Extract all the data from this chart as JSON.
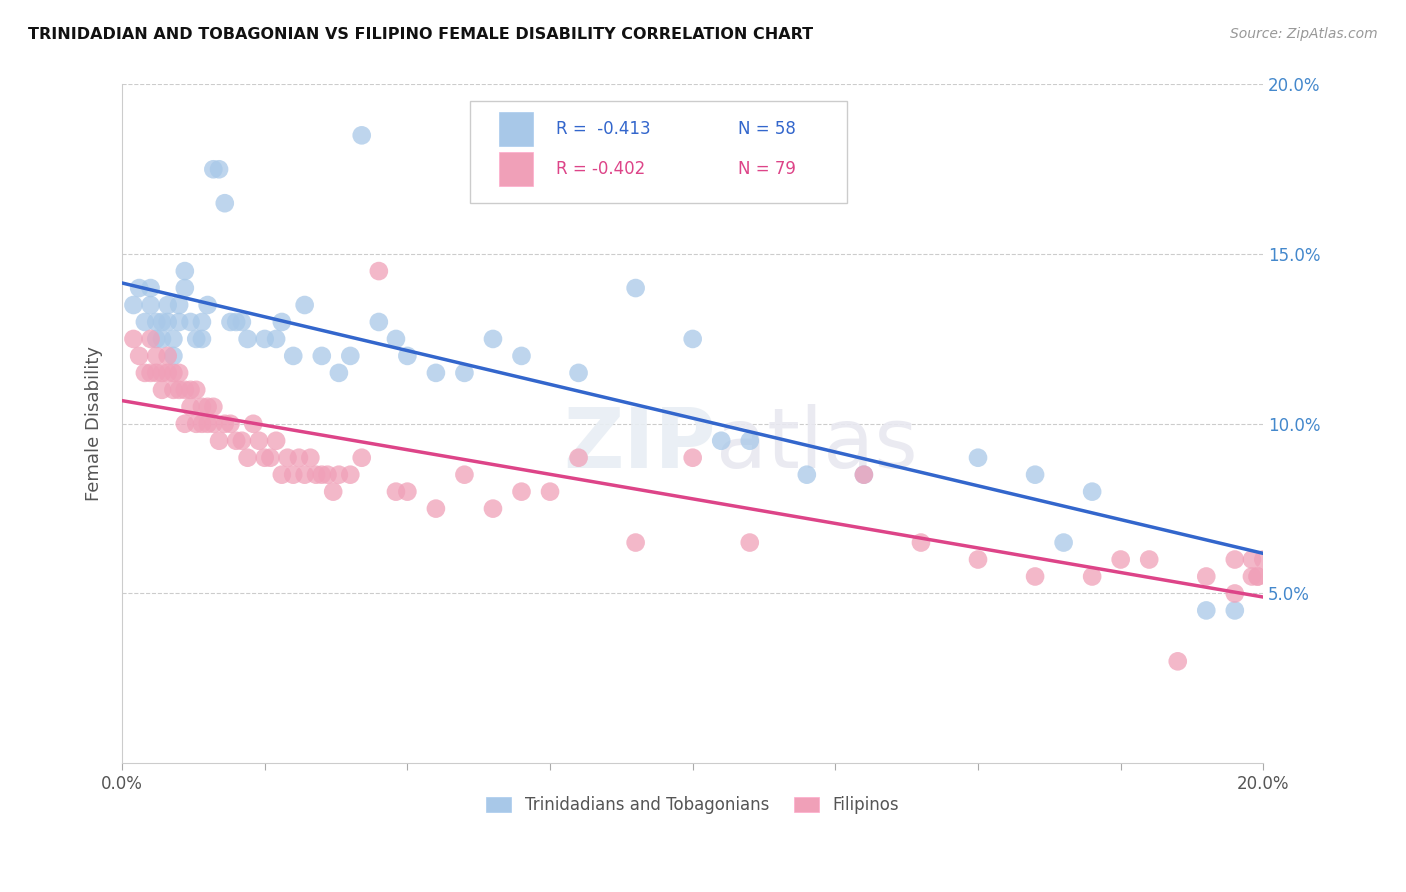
{
  "title": "TRINIDADIAN AND TOBAGONIAN VS FILIPINO FEMALE DISABILITY CORRELATION CHART",
  "source": "Source: ZipAtlas.com",
  "ylabel": "Female Disability",
  "xlim": [
    0.0,
    0.2
  ],
  "ylim": [
    0.0,
    0.2
  ],
  "ytick_positions": [
    0.05,
    0.1,
    0.15,
    0.2
  ],
  "ytick_labels": [
    "5.0%",
    "10.0%",
    "15.0%",
    "20.0%"
  ],
  "xtick_positions": [
    0.0,
    0.025,
    0.05,
    0.075,
    0.1,
    0.125,
    0.15,
    0.175,
    0.2
  ],
  "xtick_labels": [
    "0.0%",
    "",
    "",
    "",
    "",
    "",
    "",
    "",
    "20.0%"
  ],
  "legend_label1": "Trinidadians and Tobagonians",
  "legend_label2": "Filipinos",
  "blue_color": "#A8C8E8",
  "pink_color": "#F0A0B8",
  "blue_line_color": "#3366CC",
  "pink_line_color": "#DD4488",
  "watermark": "ZIPatlas",
  "blue_x": [
    0.002,
    0.003,
    0.004,
    0.005,
    0.005,
    0.006,
    0.006,
    0.007,
    0.007,
    0.008,
    0.008,
    0.009,
    0.009,
    0.01,
    0.01,
    0.011,
    0.011,
    0.012,
    0.013,
    0.014,
    0.014,
    0.015,
    0.016,
    0.017,
    0.018,
    0.019,
    0.02,
    0.021,
    0.022,
    0.025,
    0.027,
    0.028,
    0.03,
    0.032,
    0.035,
    0.038,
    0.04,
    0.042,
    0.045,
    0.048,
    0.05,
    0.055,
    0.06,
    0.065,
    0.07,
    0.08,
    0.09,
    0.1,
    0.105,
    0.11,
    0.12,
    0.13,
    0.15,
    0.16,
    0.165,
    0.17,
    0.19,
    0.195
  ],
  "blue_y": [
    0.135,
    0.14,
    0.13,
    0.135,
    0.14,
    0.125,
    0.13,
    0.125,
    0.13,
    0.13,
    0.135,
    0.125,
    0.12,
    0.13,
    0.135,
    0.14,
    0.145,
    0.13,
    0.125,
    0.13,
    0.125,
    0.135,
    0.175,
    0.175,
    0.165,
    0.13,
    0.13,
    0.13,
    0.125,
    0.125,
    0.125,
    0.13,
    0.12,
    0.135,
    0.12,
    0.115,
    0.12,
    0.185,
    0.13,
    0.125,
    0.12,
    0.115,
    0.115,
    0.125,
    0.12,
    0.115,
    0.14,
    0.125,
    0.095,
    0.095,
    0.085,
    0.085,
    0.09,
    0.085,
    0.065,
    0.08,
    0.045,
    0.045
  ],
  "pink_x": [
    0.002,
    0.003,
    0.004,
    0.005,
    0.005,
    0.006,
    0.006,
    0.007,
    0.007,
    0.008,
    0.008,
    0.009,
    0.009,
    0.01,
    0.01,
    0.011,
    0.011,
    0.012,
    0.012,
    0.013,
    0.013,
    0.014,
    0.014,
    0.015,
    0.015,
    0.016,
    0.016,
    0.017,
    0.018,
    0.019,
    0.02,
    0.021,
    0.022,
    0.023,
    0.024,
    0.025,
    0.026,
    0.027,
    0.028,
    0.029,
    0.03,
    0.031,
    0.032,
    0.033,
    0.034,
    0.035,
    0.036,
    0.037,
    0.038,
    0.04,
    0.042,
    0.045,
    0.048,
    0.05,
    0.055,
    0.06,
    0.065,
    0.07,
    0.075,
    0.08,
    0.09,
    0.1,
    0.11,
    0.13,
    0.14,
    0.15,
    0.16,
    0.17,
    0.175,
    0.18,
    0.185,
    0.19,
    0.195,
    0.195,
    0.198,
    0.198,
    0.199,
    0.199,
    0.2
  ],
  "pink_y": [
    0.125,
    0.12,
    0.115,
    0.125,
    0.115,
    0.12,
    0.115,
    0.115,
    0.11,
    0.115,
    0.12,
    0.11,
    0.115,
    0.11,
    0.115,
    0.1,
    0.11,
    0.105,
    0.11,
    0.1,
    0.11,
    0.105,
    0.1,
    0.1,
    0.105,
    0.1,
    0.105,
    0.095,
    0.1,
    0.1,
    0.095,
    0.095,
    0.09,
    0.1,
    0.095,
    0.09,
    0.09,
    0.095,
    0.085,
    0.09,
    0.085,
    0.09,
    0.085,
    0.09,
    0.085,
    0.085,
    0.085,
    0.08,
    0.085,
    0.085,
    0.09,
    0.145,
    0.08,
    0.08,
    0.075,
    0.085,
    0.075,
    0.08,
    0.08,
    0.09,
    0.065,
    0.09,
    0.065,
    0.085,
    0.065,
    0.06,
    0.055,
    0.055,
    0.06,
    0.06,
    0.03,
    0.055,
    0.05,
    0.06,
    0.055,
    0.06,
    0.055,
    0.055,
    0.06
  ]
}
